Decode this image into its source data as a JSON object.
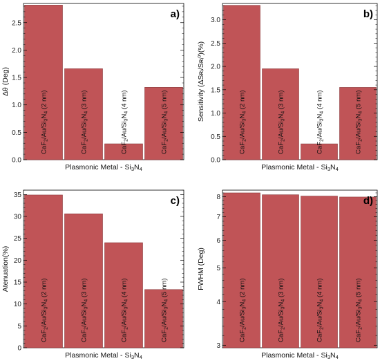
{
  "chart_data": [
    {
      "type": "bar",
      "panel_label": "a)",
      "xlabel": "Plasmonic Metal - Si₃N₄",
      "ylabel": "Δθ (Deg)",
      "categories": [
        "CaF₂/Au/Si₃N₄ (2 nm)",
        "CaF₂/Au/Si₃N₄ (3 nm)",
        "CaF₂/Au/Si₃N₄ (4 nm)",
        "CaF₂/Au/Si₃N₄ (5 nm)"
      ],
      "values": [
        2.82,
        1.66,
        0.29,
        1.32
      ],
      "ylim": [
        0,
        2.85
      ],
      "yticks": [
        0.0,
        0.5,
        1.0,
        1.5,
        2.0,
        2.5
      ],
      "ytick_labels": [
        "0.0",
        "0.5",
        "1.0",
        "1.5",
        "2.0",
        "2.5"
      ],
      "scale": "linear",
      "label_corner": "top-right",
      "bar_color": "#c05457"
    },
    {
      "type": "bar",
      "panel_label": "b)",
      "xlabel": "Plasmonic Metal - Si₃N₄",
      "ylabel": "Sensitivity (ΔSʀᵢ/Sʀᵢ⁰)(%)",
      "categories": [
        "CaF₂/Au/Si₃N₄ (2 nm)",
        "CaF₂/Au/Si₃N₄ (3 nm)",
        "CaF₂/Au/Si₃N₄ (4 nm)",
        "CaF₂/Au/Si₃N₄ (5 nm)"
      ],
      "values": [
        3.31,
        1.95,
        0.34,
        1.55
      ],
      "ylim": [
        0,
        3.35
      ],
      "yticks": [
        0.0,
        0.5,
        1.0,
        1.5,
        2.0,
        2.5,
        3.0
      ],
      "ytick_labels": [
        "0.0",
        "0.5",
        "1.0",
        "1.5",
        "2.0",
        "2.5",
        "3.0"
      ],
      "scale": "linear",
      "label_corner": "top-right",
      "bar_color": "#c05457"
    },
    {
      "type": "bar",
      "panel_label": "c)",
      "xlabel": "Plasmonic Metal - Si₃N₄",
      "ylabel": "Atenuation(%)",
      "categories": [
        "CaF₂/Au/Si₃N₄ (2 nm)",
        "CaF₂/Au/Si₃N₄ (3 nm)",
        "CaF₂/Au/Si₃N₄ (4 nm)",
        "CaF₂/Au/Si₃N₄ (5 nm)"
      ],
      "values": [
        34.9,
        30.6,
        24.0,
        13.3
      ],
      "ylim": [
        0,
        36
      ],
      "yticks": [
        0,
        5,
        10,
        15,
        20,
        25,
        30,
        35
      ],
      "ytick_labels": [
        "0",
        "5",
        "10",
        "15",
        "20",
        "25",
        "30",
        "35"
      ],
      "scale": "linear",
      "label_corner": "top-right",
      "bar_color": "#c05457"
    },
    {
      "type": "bar",
      "panel_label": "d)",
      "xlabel": "Plasmonic Metal - Si₃N₄",
      "ylabel": "FWHM (Deg)",
      "categories": [
        "CaF₂/Au/Si₃N₄ (2 nm)",
        "CaF₂/Au/Si₃N₄ (3 nm)",
        "CaF₂/Au/Si₃N₄ (4 nm)",
        "CaF₂/Au/Si₃N₄ (5 nm)"
      ],
      "values": [
        8.2,
        8.1,
        8.03,
        7.98
      ],
      "ylim": [
        2.95,
        8.35
      ],
      "yticks": [
        3,
        4,
        5,
        6,
        7,
        8
      ],
      "ytick_labels": [
        "3",
        "4",
        "5",
        "6",
        "7",
        "8"
      ],
      "scale": "log",
      "label_corner": "top-right",
      "bar_color": "#c05457"
    }
  ]
}
